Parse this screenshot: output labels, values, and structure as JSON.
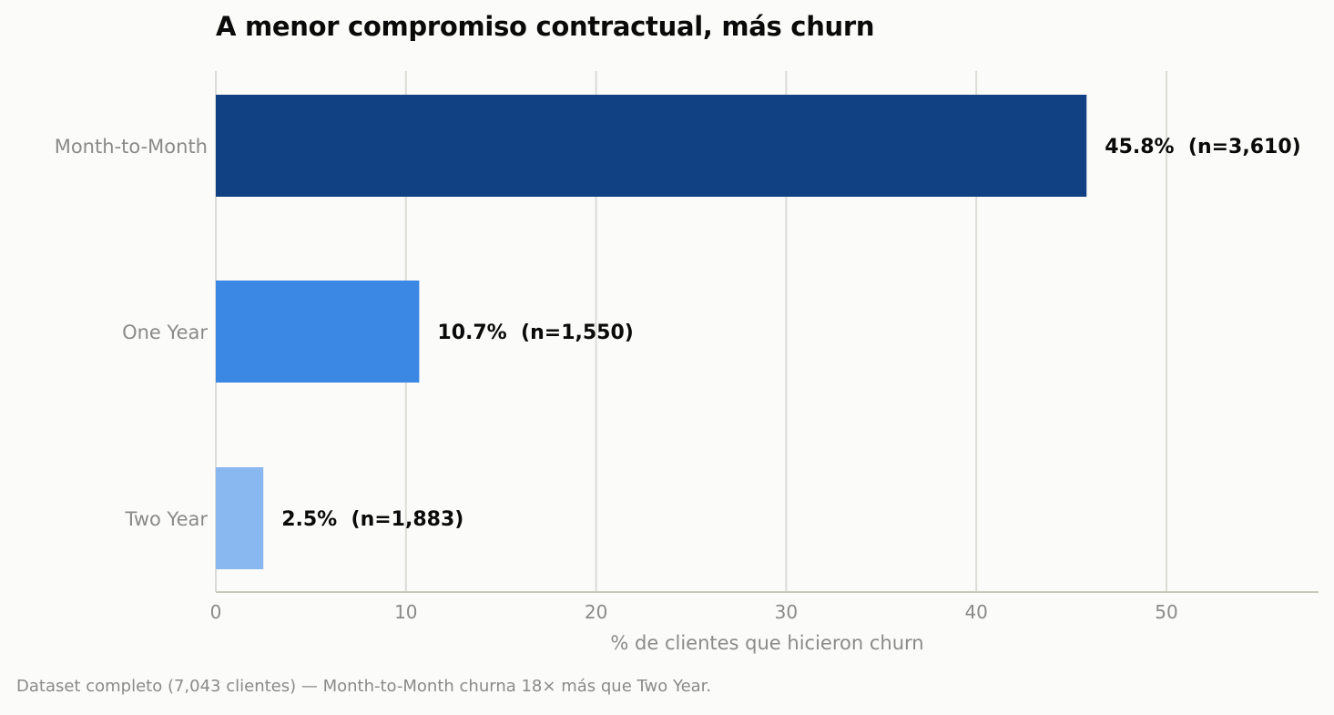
{
  "chart_data": {
    "type": "bar",
    "orientation": "horizontal",
    "title": "A menor compromiso contractual, más churn",
    "xlabel": "% de clientes que hicieron churn",
    "ylabel": "",
    "xlim": [
      0,
      58
    ],
    "xticks": [
      0,
      10,
      20,
      30,
      40,
      50
    ],
    "grid": "vertical",
    "categories": [
      "Month-to-Month",
      "One Year",
      "Two Year"
    ],
    "values": [
      45.8,
      10.7,
      2.5
    ],
    "counts": [
      "3,610",
      "1,550",
      "1,883"
    ],
    "data_labels": [
      "45.8%  (n=3,610)",
      "10.7%  (n=1,550)",
      "2.5%  (n=1,883)"
    ],
    "colors": [
      "#114182",
      "#3a87e4",
      "#89b8f0"
    ]
  },
  "footnote": "Dataset completo (7,043 clientes) — Month-to-Month churna 18× más que Two Year."
}
